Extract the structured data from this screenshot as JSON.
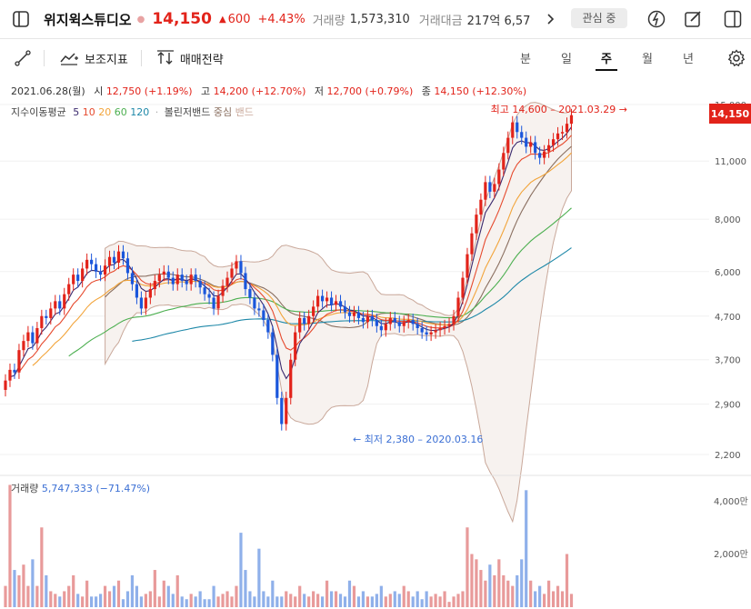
{
  "header": {
    "stock_name": "위지윅스튜디오",
    "price": "14,150",
    "change_arrow": "▲",
    "change": "600",
    "change_rate": "+4.43%",
    "volume_label": "거래량",
    "volume": "1,573,310",
    "amount_label": "거래대금",
    "amount": "217억 6,57",
    "favorite_label": "관심 중"
  },
  "toolbar": {
    "indicator_label": "보조지표",
    "strategy_label": "매매전략",
    "periods": [
      "분",
      "일",
      "주",
      "월",
      "년"
    ],
    "active_period": "주"
  },
  "candle_info": {
    "date": "2021.06.28(월)",
    "open_label": "시",
    "open": "12,750 (+1.19%)",
    "high_label": "고",
    "high": "14,200 (+12.70%)",
    "low_label": "저",
    "low": "12,700 (+0.79%)",
    "close_label": "종",
    "close": "14,150 (+12.30%)"
  },
  "ma_legend": {
    "label": "지수이동평균",
    "periods": [
      "5",
      "10",
      "20",
      "60",
      "120"
    ],
    "bollinger_label": "볼린저밴드",
    "center_label": "중심",
    "band_label": "밴드"
  },
  "annotations": {
    "high": "최고 14,600 – 2021.03.29 →",
    "low": "← 최저 2,380 – 2020.03.16"
  },
  "volume_info": {
    "label": "거래량",
    "value": "5,747,333 (−71.47%)",
    "axis_labels": [
      "4,000만",
      "2,000만"
    ]
  },
  "chart_data": {
    "type": "candlestick",
    "y_axis_labels": [
      "15,000",
      "11,000",
      "8,000",
      "6,000",
      "4,700",
      "3,700",
      "2,900",
      "2,200"
    ],
    "y_axis_values": [
      15000,
      11000,
      8000,
      6000,
      4700,
      3700,
      2900,
      2200
    ],
    "y_scale": "log",
    "current_price": 14150,
    "current_price_label": "14,150",
    "period_high": 14600,
    "period_low": 2380,
    "colors": {
      "up": "#e2231a",
      "down": "#1a56db",
      "ma5": "#3b2a6e",
      "ma10": "#e64a2e",
      "ma20": "#f2a43a",
      "ma60": "#4caf50",
      "ma120": "#1e88a8",
      "band": "#a07a6a"
    },
    "closes": [
      3300,
      3500,
      3450,
      3900,
      4100,
      4300,
      4050,
      4400,
      4700,
      4650,
      4900,
      5100,
      4900,
      5300,
      5600,
      5900,
      5700,
      6100,
      6400,
      6250,
      6000,
      5900,
      6200,
      6500,
      6300,
      6700,
      6450,
      5950,
      5600,
      5200,
      4900,
      5200,
      5450,
      5700,
      5900,
      6000,
      5800,
      5600,
      5900,
      5700,
      5600,
      5900,
      5700,
      5500,
      5300,
      5200,
      4900,
      5250,
      5550,
      5800,
      6100,
      6350,
      5950,
      5450,
      5200,
      4900,
      4850,
      4600,
      4300,
      3800,
      3000,
      2600,
      3000,
      3700,
      4300,
      4650,
      4500,
      4700,
      4950,
      5250,
      5100,
      5200,
      5000,
      5100,
      4950,
      4800,
      4700,
      4800,
      4650,
      4550,
      4700,
      4600,
      4450,
      4350,
      4500,
      4650,
      4550,
      4450,
      4550,
      4600,
      4500,
      4400,
      4300,
      4250,
      4300,
      4350,
      4400,
      4450,
      4500,
      4700,
      5200,
      5800,
      6600,
      7400,
      8200,
      8900,
      9800,
      9300,
      9700,
      10500,
      11500,
      12500,
      13600,
      12900,
      12500,
      11900,
      12200,
      11500,
      11200,
      11600,
      12000,
      12400,
      12800,
      12900,
      13500,
      14150
    ],
    "volumes_million": [
      8,
      46,
      14,
      12,
      16,
      8,
      18,
      8,
      30,
      12,
      6,
      5,
      4,
      6,
      8,
      12,
      5,
      4,
      10,
      4,
      4,
      5,
      8,
      6,
      8,
      10,
      3,
      6,
      12,
      8,
      4,
      5,
      6,
      14,
      4,
      10,
      8,
      5,
      12,
      4,
      3,
      5,
      4,
      6,
      3,
      3,
      8,
      4,
      5,
      6,
      4,
      8,
      28,
      14,
      6,
      4,
      22,
      6,
      4,
      10,
      4,
      4,
      6,
      5,
      4,
      8,
      5,
      4,
      6,
      5,
      4,
      10,
      6,
      6,
      5,
      4,
      10,
      8,
      4,
      6,
      4,
      4,
      5,
      8,
      4,
      5,
      6,
      5,
      8,
      6,
      4,
      6,
      3,
      6,
      4,
      5,
      4,
      6,
      2,
      4,
      5,
      6,
      30,
      20,
      18,
      14,
      10,
      16,
      12,
      18,
      12,
      10,
      8,
      12,
      18,
      44,
      10,
      6,
      8,
      5,
      10,
      6,
      8,
      6,
      20,
      5
    ]
  }
}
